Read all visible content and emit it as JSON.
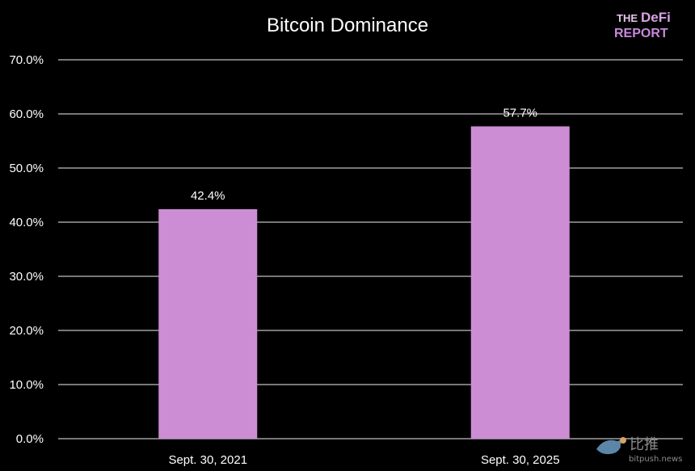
{
  "chart_data": {
    "type": "bar",
    "title": "Bitcoin Dominance",
    "categories": [
      "Sept. 30, 2021",
      "Sept. 30, 2025"
    ],
    "values": [
      42.4,
      57.7
    ],
    "data_labels": [
      "42.4%",
      "57.7%"
    ],
    "ylim": [
      0,
      70
    ],
    "yticks": [
      0,
      10,
      20,
      30,
      40,
      50,
      60,
      70
    ],
    "ytick_labels": [
      "0.0%",
      "10.0%",
      "20.0%",
      "30.0%",
      "40.0%",
      "50.0%",
      "60.0%",
      "70.0%"
    ],
    "xlabel": "",
    "ylabel": "",
    "grid": true,
    "legend": "none",
    "bar_color": "#cd8dd4",
    "background": "#000000",
    "gridline_color": "#bfbfbf"
  },
  "branding": {
    "logo_line1": "THE",
    "logo_line1_b": "DeFi",
    "logo_line2": "REPORT",
    "logo_color": "#c988dc"
  },
  "watermark": {
    "cn_text": "比推",
    "en_text": "bitpush.news",
    "icon": "bird-icon"
  }
}
